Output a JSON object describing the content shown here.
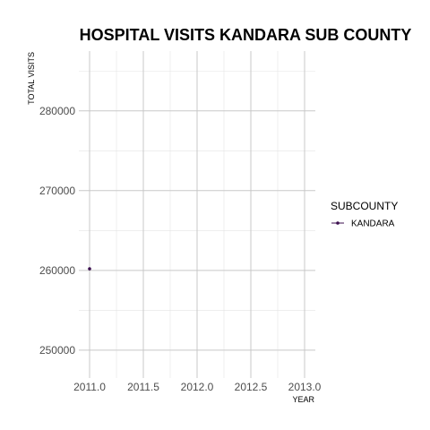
{
  "chart_data": {
    "type": "line",
    "title": "HOSPITAL VISITS KANDARA SUB COUNTY",
    "xlabel": "YEAR",
    "ylabel": "TOTAL VISITS",
    "xlim": [
      2011.0,
      2013.0
    ],
    "ylim": [
      246500,
      287500
    ],
    "x_ticks": [
      2011.0,
      2011.5,
      2012.0,
      2012.5,
      2013.0
    ],
    "x_tick_labels": [
      "2011.0",
      "2011.5",
      "2012.0",
      "2012.5",
      "2013.0"
    ],
    "y_ticks": [
      250000,
      260000,
      270000,
      280000
    ],
    "y_tick_labels": [
      "250000",
      "260000",
      "270000",
      "280000"
    ],
    "grid": true,
    "legend": {
      "title": "SUBCOUNTY",
      "placement": "right"
    },
    "series": [
      {
        "name": "KANDARA",
        "color": "#3b0f4f",
        "points": [
          {
            "x": 2011,
            "y": 260200
          }
        ]
      }
    ]
  }
}
